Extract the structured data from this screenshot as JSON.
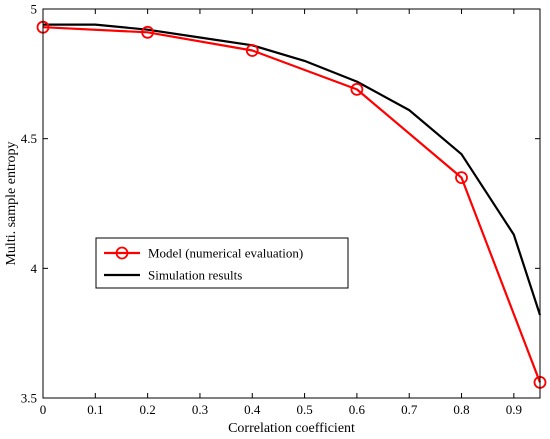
{
  "chart_data": {
    "type": "line",
    "title": "",
    "xlabel": "Correlation coefficient",
    "ylabel": "Multi. sample entropy",
    "xlim": [
      0,
      0.95
    ],
    "ylim": [
      3.5,
      5
    ],
    "xticks": [
      0,
      0.1,
      0.2,
      0.3,
      0.4,
      0.5,
      0.6,
      0.7,
      0.8,
      0.9
    ],
    "xtick_labels": [
      "0",
      "0.1",
      "0.2",
      "0.3",
      "0.4",
      "0.5",
      "0.6",
      "0.7",
      "0.8",
      "0.9"
    ],
    "yticks": [
      3.5,
      4,
      4.5,
      5
    ],
    "ytick_labels": [
      "3.5",
      "4",
      "4.5",
      "5"
    ],
    "grid": false,
    "legend_position": "center-left",
    "series": [
      {
        "name": "Model (numerical evaluation)",
        "color": "#ff0000",
        "marker": "circle-open",
        "x": [
          0,
          0.2,
          0.4,
          0.6,
          0.8,
          0.95
        ],
        "y": [
          4.93,
          4.91,
          4.84,
          4.69,
          4.35,
          3.56
        ]
      },
      {
        "name": "Simulation results",
        "color": "#000000",
        "marker": "none",
        "x": [
          0,
          0.1,
          0.2,
          0.3,
          0.4,
          0.5,
          0.6,
          0.7,
          0.8,
          0.9,
          0.95
        ],
        "y": [
          4.94,
          4.94,
          4.92,
          4.89,
          4.86,
          4.8,
          4.72,
          4.61,
          4.44,
          4.13,
          3.82
        ]
      }
    ]
  }
}
